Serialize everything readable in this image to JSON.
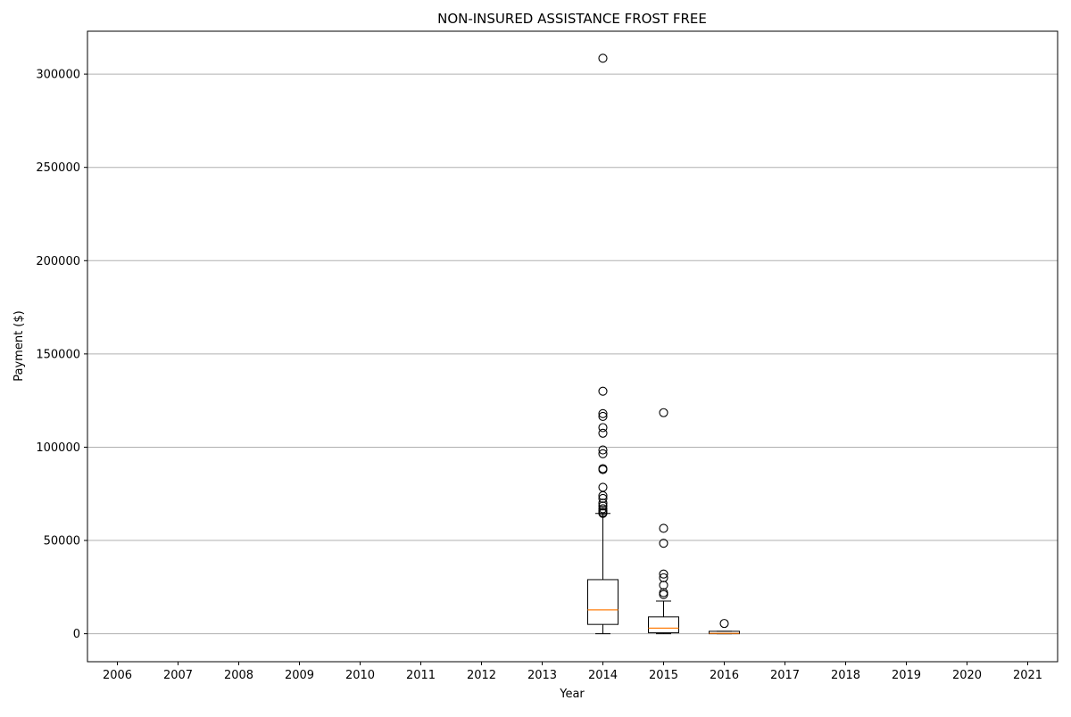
{
  "chart_data": {
    "type": "boxplot",
    "title": "NON-INSURED ASSISTANCE FROST FREE",
    "xlabel": "Year",
    "ylabel": "Payment ($)",
    "categories": [
      "2006",
      "2007",
      "2008",
      "2009",
      "2010",
      "2011",
      "2012",
      "2013",
      "2014",
      "2015",
      "2016",
      "2017",
      "2018",
      "2019",
      "2020",
      "2021"
    ],
    "ylim": [
      -15000,
      323000
    ],
    "yticks": [
      0,
      50000,
      100000,
      150000,
      200000,
      250000,
      300000
    ],
    "ytick_labels": [
      "0",
      "50000",
      "100000",
      "150000",
      "200000",
      "250000",
      "300000"
    ],
    "grid": "horizontal",
    "colors": {
      "box": "#000000",
      "median": "#ff7f0e",
      "grid": "#b0b0b0"
    },
    "boxes": [
      {
        "category": "2014",
        "whisker_low": 0,
        "q1": 5000,
        "median": 12800,
        "q3": 29000,
        "whisker_high": 64500,
        "outliers": [
          308500,
          130000,
          118000,
          116500,
          110500,
          107500,
          98500,
          96500,
          88500,
          88000,
          78500,
          74000,
          72500,
          70000,
          68500,
          67000,
          66000,
          65000,
          64500
        ]
      },
      {
        "category": "2015",
        "whisker_low": 0,
        "q1": 500,
        "median": 3000,
        "q3": 9000,
        "whisker_high": 17500,
        "outliers": [
          118500,
          56500,
          48500,
          32000,
          30000,
          26000,
          22000,
          21000
        ]
      },
      {
        "category": "2016",
        "whisker_low": 0,
        "q1": 0,
        "median": 200,
        "q3": 1300,
        "whisker_high": 1300,
        "outliers": [
          5500
        ]
      }
    ]
  }
}
